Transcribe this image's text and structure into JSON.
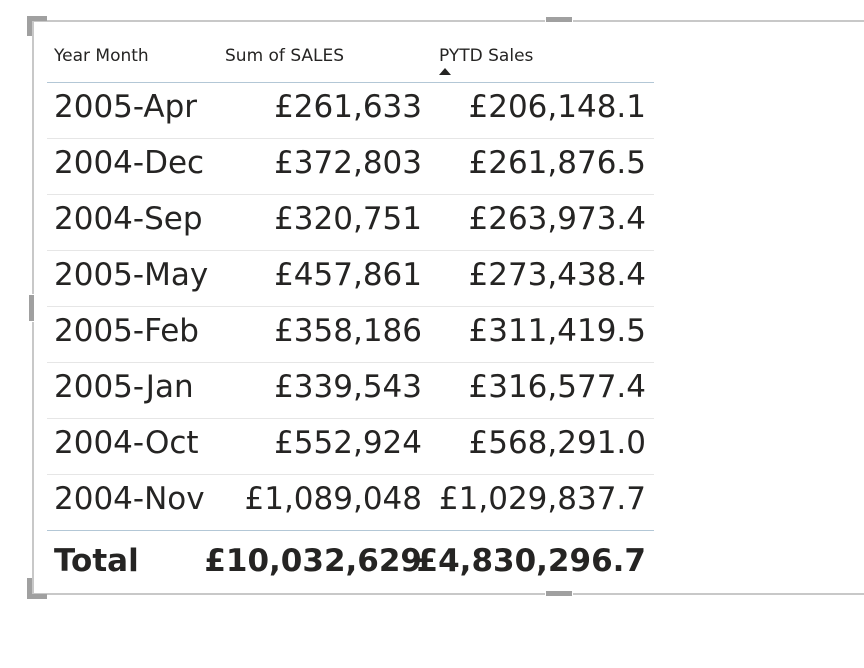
{
  "table": {
    "columns": {
      "year_month": "Year Month",
      "sum_of_sales": "Sum of SALES",
      "pytd_sales": "PYTD Sales"
    },
    "sort": {
      "column": "pytd_sales",
      "direction": "ascending"
    },
    "rows": [
      {
        "year_month": "2005-Apr",
        "sum_of_sales": "£261,633",
        "pytd_sales": "£206,148.1"
      },
      {
        "year_month": "2004-Dec",
        "sum_of_sales": "£372,803",
        "pytd_sales": "£261,876.5"
      },
      {
        "year_month": "2004-Sep",
        "sum_of_sales": "£320,751",
        "pytd_sales": "£263,973.4"
      },
      {
        "year_month": "2005-May",
        "sum_of_sales": "£457,861",
        "pytd_sales": "£273,438.4"
      },
      {
        "year_month": "2005-Feb",
        "sum_of_sales": "£358,186",
        "pytd_sales": "£311,419.5"
      },
      {
        "year_month": "2005-Jan",
        "sum_of_sales": "£339,543",
        "pytd_sales": "£316,577.4"
      },
      {
        "year_month": "2004-Oct",
        "sum_of_sales": "£552,924",
        "pytd_sales": "£568,291.0"
      },
      {
        "year_month": "2004-Nov",
        "sum_of_sales": "£1,089,048",
        "pytd_sales": "£1,029,837.7"
      }
    ],
    "total": {
      "label": "Total",
      "sum_of_sales": "£10,032,629",
      "pytd_sales": "£4,830,296.7"
    }
  }
}
